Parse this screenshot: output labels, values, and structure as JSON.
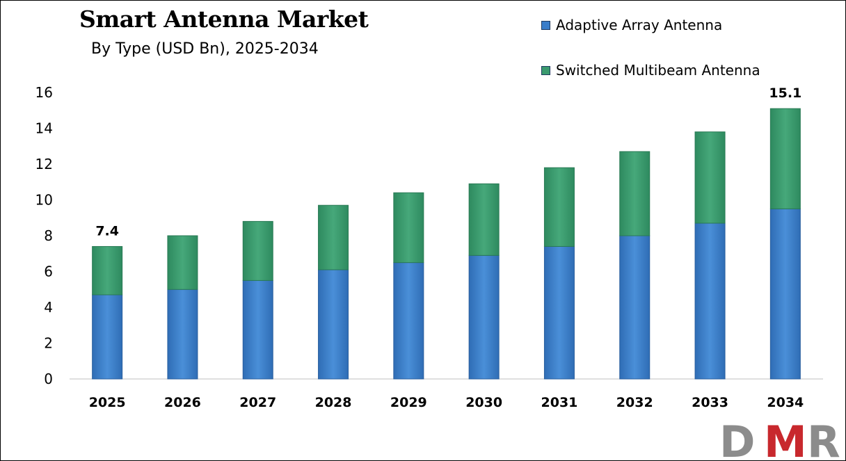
{
  "chart_data": {
    "type": "bar",
    "stacked": true,
    "title": "Smart Antenna Market",
    "subtitle": "By Type (USD Bn), 2025-2034",
    "categories": [
      "2025",
      "2026",
      "2027",
      "2028",
      "2029",
      "2030",
      "2031",
      "2032",
      "2033",
      "2034"
    ],
    "series": [
      {
        "name": "Adaptive Array Antenna",
        "color": "#3a7dc9",
        "values": [
          4.7,
          5.0,
          5.5,
          6.1,
          6.5,
          6.9,
          7.4,
          8.0,
          8.7,
          9.5
        ]
      },
      {
        "name": "Switched Multibeam Antenna",
        "color": "#3a9a6e",
        "values": [
          2.7,
          3.0,
          3.3,
          3.6,
          3.9,
          4.0,
          4.4,
          4.7,
          5.1,
          5.6
        ]
      }
    ],
    "totals_labels": [
      {
        "category": "2025",
        "text": "7.4"
      },
      {
        "category": "2034",
        "text": "15.1"
      }
    ],
    "ylim": [
      0,
      16
    ],
    "yticks": [
      "0",
      "2",
      "4",
      "6",
      "8",
      "10",
      "12",
      "14",
      "16"
    ],
    "grid": false,
    "legend_position": "top-right"
  },
  "logo": {
    "text": "DMR",
    "colors": [
      "#8c8c8c",
      "#c8282d",
      "#8c8c8c"
    ]
  }
}
